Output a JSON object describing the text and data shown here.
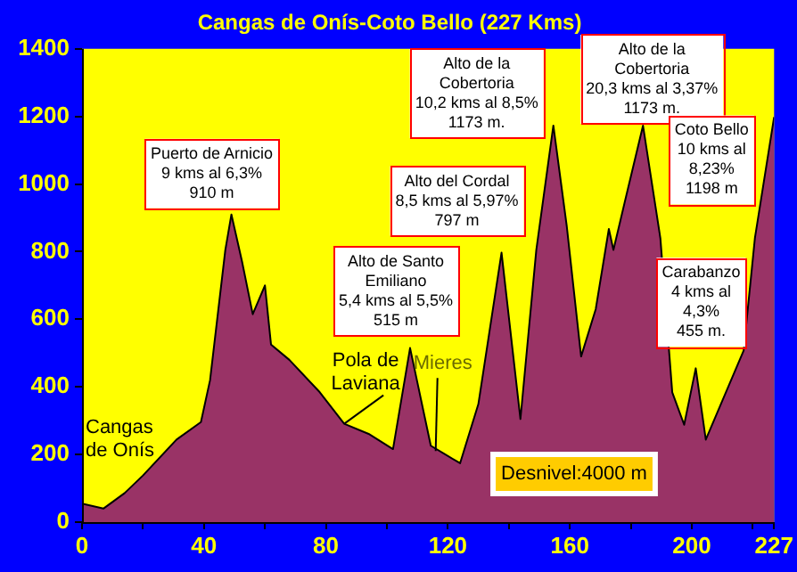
{
  "chart_data": {
    "type": "area",
    "title": "Cangas de Onís-Coto Bello (227 Kms)",
    "x": [
      0,
      7,
      14,
      20,
      31,
      39,
      42,
      47,
      49,
      52.5,
      56,
      60,
      62,
      68,
      78,
      86,
      94,
      102,
      107.6,
      114.4,
      124,
      130,
      137.6,
      143.8,
      149,
      154.6,
      159,
      163.7,
      168.5,
      172.8,
      174.3,
      178,
      184,
      189.7,
      193.6,
      197.5,
      201.3,
      204.6,
      217,
      220.7,
      227
    ],
    "series": [
      {
        "color": "#993366",
        "values": [
          55,
          40,
          86,
          138,
          244,
          296,
          420,
          805,
          910,
          770,
          615,
          700,
          525,
          480,
          384,
          291,
          261,
          216,
          515,
          226,
          174,
          349,
          797,
          305,
          805,
          1173,
          875,
          490,
          630,
          867,
          805,
          946,
          1173,
          840,
          384,
          288,
          455,
          244,
          507,
          840,
          1198
        ]
      }
    ],
    "xlim": [
      0,
      227
    ],
    "xticks": [
      0,
      {
        "value": 20,
        "label": null
      },
      40,
      {
        "value": 60,
        "label": null
      },
      80,
      {
        "value": 100,
        "label": null
      },
      120,
      {
        "value": 140,
        "label": null
      },
      160,
      {
        "value": 180,
        "label": null
      },
      200,
      {
        "value": 220,
        "label": null
      },
      227
    ],
    "ylim": [
      0,
      1400
    ],
    "yticks": [
      0,
      200,
      400,
      600,
      800,
      1000,
      1200,
      1400
    ],
    "grid": false,
    "legend": false,
    "annotations": [
      {
        "text": "Puerto de Arnicio\n9 kms al 6,3%\n910 m",
        "x": 49,
        "y": 910
      },
      {
        "text": "Alto de Santo\nEmiliano\n5,4 kms al 5,5%\n515 m",
        "x": 107.6,
        "y": 515
      },
      {
        "text": "Alto del Cordal\n8,5 kms al 5,97%\n797 m",
        "x": 137.6,
        "y": 797
      },
      {
        "text": "Alto de la\nCobertoria\n10,2 kms al 8,5%\n1173 m.",
        "x": 154.6,
        "y": 1173
      },
      {
        "text": "Alto de la\nCobertoria\n20,3 kms al 3,37%\n1173 m.",
        "x": 184,
        "y": 1173
      },
      {
        "text": "Coto Bello\n10 kms al\n8,23%\n1198 m",
        "x": 227,
        "y": 1198
      },
      {
        "text": "Carabanzo\n4 kms al\n4,3%\n455 m.",
        "x": 201.3,
        "y": 455
      },
      {
        "text": "Cangas\nde Onís",
        "x": 0,
        "y": 55
      },
      {
        "text": "Pola de\nLaviana",
        "x": 86,
        "y": 291
      },
      {
        "text": "Mieres",
        "x": 116,
        "y": 210
      },
      "Desnivel:4000 m"
    ]
  }
}
